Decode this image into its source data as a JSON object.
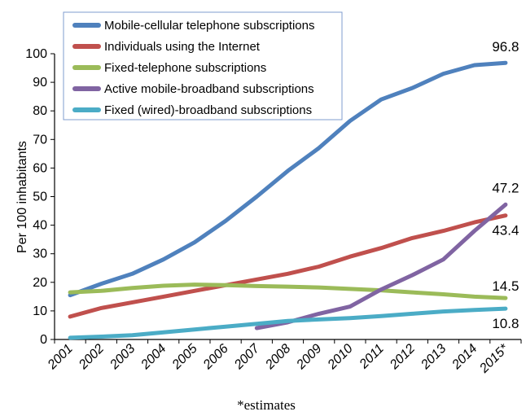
{
  "chart_data": {
    "type": "line",
    "x": [
      "2001",
      "2002",
      "2003",
      "2004",
      "2005",
      "2006",
      "2007",
      "2008",
      "2009",
      "2010",
      "2011",
      "2012",
      "2013",
      "2014",
      "2015*"
    ],
    "ylabel": "Per 100 inhabitants",
    "ylim": [
      0,
      100
    ],
    "yticks": [
      0,
      10,
      20,
      30,
      40,
      50,
      60,
      70,
      80,
      90,
      100
    ],
    "legend_position": "top-left",
    "footnote": "*estimates",
    "series": [
      {
        "name": "Mobile-cellular telephone subscriptions",
        "color": "#4F81BD",
        "values": [
          15.5,
          19.5,
          23,
          28,
          34,
          41.5,
          50,
          59,
          67,
          76.5,
          84,
          88,
          93,
          96,
          96.8
        ],
        "end_label": "96.8"
      },
      {
        "name": "Individuals using the Internet",
        "color": "#C0504D",
        "values": [
          8,
          11,
          13,
          15,
          17,
          19,
          21,
          23,
          25.5,
          29,
          32,
          35.5,
          38,
          41,
          43.4
        ],
        "end_label": "43.4"
      },
      {
        "name": "Fixed-telephone subscriptions",
        "color": "#9BBB59",
        "values": [
          16.5,
          17,
          18,
          18.8,
          19.2,
          19,
          18.7,
          18.5,
          18.2,
          17.7,
          17.2,
          16.5,
          15.8,
          15,
          14.5
        ],
        "end_label": "14.5"
      },
      {
        "name": "Active mobile-broadband subscriptions",
        "color": "#8064A2",
        "values": [
          null,
          null,
          null,
          null,
          null,
          null,
          4,
          6,
          9,
          11.5,
          17.5,
          22.5,
          28,
          38,
          47.2
        ],
        "end_label": "47.2"
      },
      {
        "name": "Fixed (wired)-broadband subscriptions",
        "color": "#4BACC6",
        "values": [
          0.6,
          1,
          1.5,
          2.5,
          3.5,
          4.5,
          5.5,
          6.5,
          7,
          7.5,
          8.2,
          9,
          9.8,
          10.3,
          10.8
        ],
        "end_label": "10.8"
      }
    ]
  }
}
